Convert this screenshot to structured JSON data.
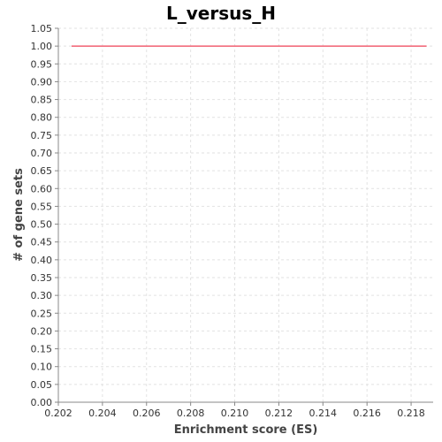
{
  "chart_data": {
    "type": "line",
    "title": "L_versus_H",
    "xlabel": "Enrichment score (ES)",
    "ylabel": "# of gene sets",
    "xlim": [
      0.202,
      0.219
    ],
    "ylim": [
      0.0,
      1.05
    ],
    "x_ticks": [
      "0.202",
      "0.204",
      "0.206",
      "0.208",
      "0.210",
      "0.212",
      "0.214",
      "0.216",
      "0.218"
    ],
    "y_ticks": [
      "0.00",
      "0.05",
      "0.10",
      "0.15",
      "0.20",
      "0.25",
      "0.30",
      "0.35",
      "0.40",
      "0.45",
      "0.50",
      "0.55",
      "0.60",
      "0.65",
      "0.70",
      "0.75",
      "0.80",
      "0.85",
      "0.90",
      "0.95",
      "1.00",
      "1.05"
    ],
    "grid": true,
    "series": [
      {
        "color": "#f26d7d",
        "x": [
          0.2026,
          0.2187
        ],
        "y": [
          1.0,
          1.0
        ]
      }
    ]
  }
}
